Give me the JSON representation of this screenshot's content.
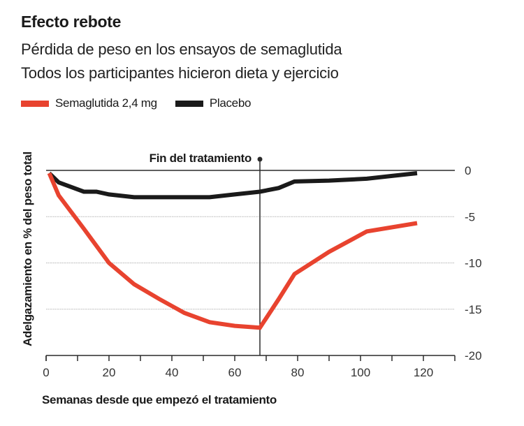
{
  "header": {
    "title": "Efecto rebote",
    "subtitle_1": "Pérdida de peso en los ensayos de semaglutida",
    "subtitle_2": "Todos los participantes hicieron dieta y ejercicio"
  },
  "colors": {
    "semaglutide": "#e8432f",
    "placebo": "#1a1a1a",
    "grid": "#b5b5b5",
    "axis": "#2a2a2a"
  },
  "chart_data": {
    "type": "line",
    "title": "Efecto rebote",
    "subtitle": "Pérdida de peso en los ensayos de semaglutida. Todos los participantes hicieron dieta y ejercicio",
    "xlabel": "Semanas desde que empezó el tratamiento",
    "ylabel": "Adelgazamiento en % del peso total",
    "xlim": [
      0,
      130
    ],
    "ylim": [
      -20,
      0
    ],
    "xticks": [
      0,
      20,
      40,
      60,
      80,
      100,
      120
    ],
    "xminor_ticks": [
      10,
      30,
      50,
      70,
      90,
      110,
      130
    ],
    "yticks": [
      0,
      -5,
      -10,
      -15,
      -20
    ],
    "ytick_side": "right",
    "grid": "horizontal-dotted",
    "legend_position": "top-left",
    "annotation": {
      "label": "Fin del tratamiento",
      "x": 68
    },
    "series": [
      {
        "name": "Semaglutida 2,4 mg",
        "color": "#e8432f",
        "x": [
          1,
          4,
          12,
          20,
          28,
          36,
          44,
          52,
          60,
          68,
          74,
          79,
          90,
          102,
          118
        ],
        "y": [
          -0.3,
          -2.7,
          -6.3,
          -10.0,
          -12.3,
          -13.9,
          -15.4,
          -16.4,
          -16.8,
          -17.0,
          -13.9,
          -11.2,
          -8.8,
          -6.6,
          -5.7
        ]
      },
      {
        "name": "Placebo",
        "color": "#1a1a1a",
        "x": [
          1,
          4,
          12,
          16,
          20,
          28,
          36,
          44,
          52,
          60,
          68,
          74,
          79,
          90,
          102,
          110,
          118
        ],
        "y": [
          -0.3,
          -1.3,
          -2.3,
          -2.3,
          -2.6,
          -2.9,
          -2.9,
          -2.9,
          -2.9,
          -2.6,
          -2.3,
          -1.9,
          -1.2,
          -1.1,
          -0.9,
          -0.6,
          -0.3
        ]
      }
    ]
  }
}
